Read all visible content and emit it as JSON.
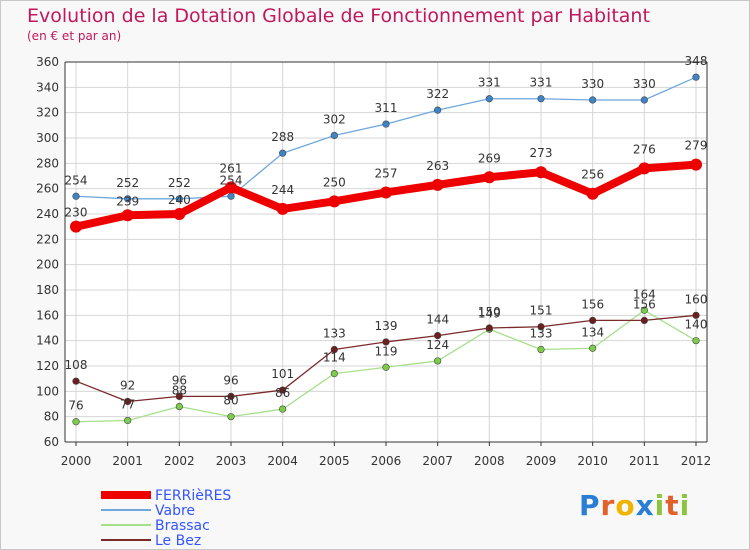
{
  "title": "Evolution de la Dotation Globale de Fonctionnement par Habitant",
  "subtitle": "(en € et par an)",
  "logo": {
    "letters": [
      "P",
      "r",
      "o",
      "x",
      "i",
      "t",
      "i"
    ],
    "colors": [
      "#2a7fd4",
      "#e2612b",
      "#f0b400",
      "#2a7fd4",
      "#8bc43f",
      "#e2612b",
      "#8bc43f"
    ]
  },
  "chart_data": {
    "type": "line",
    "x": [
      "2000",
      "2001",
      "2002",
      "2003",
      "2004",
      "2005",
      "2006",
      "2007",
      "2008",
      "2009",
      "2010",
      "2011",
      "2012"
    ],
    "ylim": [
      60,
      360
    ],
    "yticks": [
      60,
      80,
      100,
      120,
      140,
      160,
      180,
      200,
      220,
      240,
      260,
      280,
      300,
      320,
      340,
      360
    ],
    "grid": true,
    "legend_position": "bottom-left",
    "series": [
      {
        "name": "FERRièRES",
        "color": "#ee0000",
        "values": [
          230,
          239,
          240,
          261,
          244,
          250,
          257,
          263,
          269,
          273,
          256,
          276,
          279
        ]
      },
      {
        "name": "Vabre",
        "color": "#6fa8dc",
        "marker": "#3d85c6",
        "values": [
          254,
          252,
          252,
          254,
          288,
          302,
          311,
          322,
          331,
          331,
          330,
          330,
          348
        ]
      },
      {
        "name": "Brassac",
        "color": "#a6e08a",
        "marker": "#7ccc4c",
        "values": [
          76,
          77,
          88,
          80,
          86,
          114,
          119,
          124,
          149,
          133,
          134,
          164,
          140
        ]
      },
      {
        "name": "Le Bez",
        "color": "#7b2a2a",
        "marker": "#6b1f1f",
        "values": [
          108,
          92,
          96,
          96,
          101,
          133,
          139,
          144,
          150,
          151,
          156,
          156,
          160
        ]
      }
    ]
  }
}
